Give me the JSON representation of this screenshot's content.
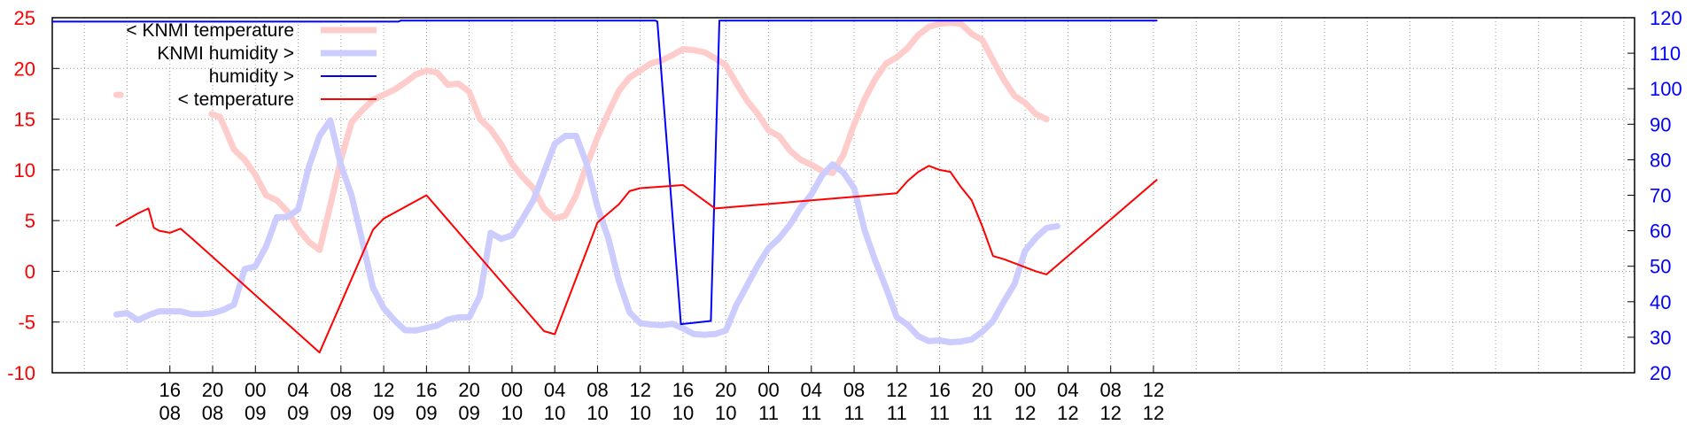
{
  "chart_data": {
    "type": "line",
    "title": "",
    "x_unit": "hour",
    "x_range": [
      -19,
      129
    ],
    "ylim_left": [
      -10,
      25
    ],
    "ylim_right": [
      20,
      120
    ],
    "grid": true,
    "legend_placement": "top-left",
    "yticks_left": [
      "25",
      "20",
      "15",
      "10",
      "5",
      "0",
      "-5",
      "-10"
    ],
    "yticks_right": [
      "120",
      "110",
      "100",
      "90",
      "80",
      "70",
      "60",
      "50",
      "40",
      "30",
      "20"
    ],
    "xticks": [
      {
        "x": -8,
        "hour": "16",
        "day": "08"
      },
      {
        "x": -4,
        "hour": "20",
        "day": "08"
      },
      {
        "x": 0,
        "hour": "00",
        "day": "09"
      },
      {
        "x": 4,
        "hour": "04",
        "day": "09"
      },
      {
        "x": 8,
        "hour": "08",
        "day": "09"
      },
      {
        "x": 12,
        "hour": "12",
        "day": "09"
      },
      {
        "x": 16,
        "hour": "16",
        "day": "09"
      },
      {
        "x": 20,
        "hour": "20",
        "day": "09"
      },
      {
        "x": 24,
        "hour": "00",
        "day": "10"
      },
      {
        "x": 28,
        "hour": "04",
        "day": "10"
      },
      {
        "x": 32,
        "hour": "08",
        "day": "10"
      },
      {
        "x": 36,
        "hour": "12",
        "day": "10"
      },
      {
        "x": 40,
        "hour": "16",
        "day": "10"
      },
      {
        "x": 44,
        "hour": "20",
        "day": "10"
      },
      {
        "x": 48,
        "hour": "00",
        "day": "11"
      },
      {
        "x": 52,
        "hour": "04",
        "day": "11"
      },
      {
        "x": 56,
        "hour": "08",
        "day": "11"
      },
      {
        "x": 60,
        "hour": "12",
        "day": "11"
      },
      {
        "x": 64,
        "hour": "16",
        "day": "11"
      },
      {
        "x": 68,
        "hour": "20",
        "day": "11"
      },
      {
        "x": 72,
        "hour": "00",
        "day": "12"
      },
      {
        "x": 76,
        "hour": "04",
        "day": "12"
      },
      {
        "x": 80,
        "hour": "08",
        "day": "12"
      },
      {
        "x": 84,
        "hour": "12",
        "day": "12"
      }
    ],
    "series": [
      {
        "name": "< KNMI temperature",
        "axis": "left",
        "color": "#ffcccc",
        "segments": [
          [
            [
              -13,
              17.4
            ],
            [
              -12.6,
              17.4
            ]
          ],
          [
            [
              -4.1,
              15.5
            ],
            [
              -3.3,
              15.2
            ],
            [
              -2,
              12
            ],
            [
              -1,
              11
            ],
            [
              0,
              9.5
            ],
            [
              1,
              7.5
            ],
            [
              2,
              7
            ],
            [
              3,
              5.9
            ],
            [
              4,
              4.2
            ],
            [
              5,
              2.9
            ],
            [
              6,
              2.1
            ],
            [
              7,
              6.5
            ],
            [
              8,
              11
            ],
            [
              9,
              14.7
            ],
            [
              10,
              15.9
            ],
            [
              11,
              16.9
            ],
            [
              12,
              17.4
            ],
            [
              13,
              17.9
            ],
            [
              14,
              18.6
            ],
            [
              15,
              19.4
            ],
            [
              16,
              19.8
            ],
            [
              17,
              19.6
            ],
            [
              18,
              18.4
            ],
            [
              19,
              18.5
            ],
            [
              20,
              17.7
            ],
            [
              21,
              15
            ],
            [
              22,
              14
            ],
            [
              23,
              12.5
            ],
            [
              24,
              10.6
            ],
            [
              25,
              9.3
            ],
            [
              26,
              8.2
            ],
            [
              27,
              6.2
            ],
            [
              28,
              5.2
            ],
            [
              29,
              5.5
            ],
            [
              30,
              7.5
            ],
            [
              31,
              10.5
            ],
            [
              32,
              13.2
            ],
            [
              33,
              15.6
            ],
            [
              34,
              17.8
            ],
            [
              35,
              19.1
            ],
            [
              36,
              19.8
            ],
            [
              37,
              20.5
            ],
            [
              38,
              20.8
            ],
            [
              39,
              21.3
            ],
            [
              40,
              21.9
            ],
            [
              41,
              21.8
            ],
            [
              42,
              21.6
            ],
            [
              43,
              21
            ],
            [
              44,
              20.3
            ],
            [
              45,
              18.5
            ],
            [
              46,
              16.8
            ],
            [
              47,
              15.5
            ],
            [
              48,
              13.9
            ],
            [
              49,
              13.3
            ],
            [
              50,
              11.9
            ],
            [
              51,
              11
            ],
            [
              52,
              10.5
            ],
            [
              53,
              9.9
            ],
            [
              54,
              9.7
            ],
            [
              55,
              11.5
            ],
            [
              56,
              14.5
            ],
            [
              57,
              17
            ],
            [
              58,
              19
            ],
            [
              59,
              20.5
            ],
            [
              60,
              21.1
            ],
            [
              61,
              22
            ],
            [
              62,
              23.3
            ],
            [
              63,
              24.1
            ],
            [
              64,
              24.4
            ],
            [
              65,
              24.5
            ],
            [
              66,
              24.4
            ],
            [
              67,
              23.4
            ],
            [
              68,
              22.8
            ],
            [
              69,
              20.8
            ],
            [
              70,
              18.9
            ],
            [
              71,
              17.3
            ],
            [
              72,
              16.6
            ],
            [
              73,
              15.5
            ],
            [
              74,
              15
            ]
          ]
        ]
      },
      {
        "name": "KNMI humidity >",
        "axis": "right",
        "color": "#ccccff",
        "segments": [
          [
            [
              -13,
              36.4
            ],
            [
              -12,
              36.8
            ],
            [
              -11,
              34.8
            ],
            [
              -10,
              36.2
            ],
            [
              -9,
              37.3
            ],
            [
              -8,
              37.3
            ],
            [
              -7,
              37.3
            ],
            [
              -6,
              36.5
            ],
            [
              -5,
              36.5
            ],
            [
              -4,
              36.8
            ],
            [
              -3,
              37.7
            ],
            [
              -2,
              39.2
            ],
            [
              -1,
              49.2
            ],
            [
              0,
              50
            ],
            [
              1,
              55.6
            ],
            [
              2,
              63.8
            ],
            [
              3,
              63.9
            ],
            [
              4,
              66
            ],
            [
              5,
              78
            ],
            [
              6,
              86.7
            ],
            [
              7,
              91.1
            ],
            [
              8,
              78.5
            ],
            [
              9,
              69.9
            ],
            [
              10,
              57
            ],
            [
              11,
              44
            ],
            [
              12,
              38.2
            ],
            [
              13,
              34.8
            ],
            [
              14,
              32
            ],
            [
              15,
              31.9
            ],
            [
              16,
              32.6
            ],
            [
              17,
              33.3
            ],
            [
              18,
              35
            ],
            [
              19,
              35.6
            ],
            [
              20,
              35.6
            ],
            [
              21,
              41.6
            ],
            [
              22,
              59.4
            ],
            [
              23,
              57.7
            ],
            [
              24,
              58.7
            ],
            [
              25,
              63.5
            ],
            [
              26,
              68.6
            ],
            [
              27,
              76.5
            ],
            [
              28,
              84.5
            ],
            [
              29,
              86.7
            ],
            [
              30,
              86.7
            ],
            [
              31,
              78.7
            ],
            [
              32,
              66.7
            ],
            [
              33,
              58
            ],
            [
              34,
              45.8
            ],
            [
              35,
              37
            ],
            [
              36,
              34
            ],
            [
              37,
              33.6
            ],
            [
              38,
              33.4
            ],
            [
              39,
              33.8
            ],
            [
              40,
              32.5
            ],
            [
              41,
              30.9
            ],
            [
              42,
              30.7
            ],
            [
              43,
              30.9
            ],
            [
              44,
              31.9
            ],
            [
              45,
              39.1
            ],
            [
              46,
              44.7
            ],
            [
              47,
              50.3
            ],
            [
              48,
              55.1
            ],
            [
              49,
              57.9
            ],
            [
              50,
              61.7
            ],
            [
              51,
              66.5
            ],
            [
              52,
              70.2
            ],
            [
              53,
              75.6
            ],
            [
              54,
              78.7
            ],
            [
              55,
              76.4
            ],
            [
              56,
              72
            ],
            [
              57,
              60
            ],
            [
              58,
              51.4
            ],
            [
              59,
              43.8
            ],
            [
              60,
              35.6
            ],
            [
              61,
              33.5
            ],
            [
              62,
              30.3
            ],
            [
              63,
              28.9
            ],
            [
              64,
              29.1
            ],
            [
              65,
              28.6
            ],
            [
              66,
              28.8
            ],
            [
              67,
              29.4
            ],
            [
              68,
              31.6
            ],
            [
              69,
              34.6
            ],
            [
              70,
              40
            ],
            [
              71,
              45
            ],
            [
              72,
              54.4
            ],
            [
              73,
              58
            ],
            [
              74,
              60.8
            ],
            [
              75,
              61.3
            ]
          ]
        ]
      },
      {
        "name": "humidity >",
        "axis": "right",
        "color": "#0000ff",
        "segments": [
          [
            [
              -19,
              118.9
            ],
            [
              13.4,
              118.9
            ],
            [
              13.6,
              119.2
            ],
            [
              37.4,
              119.2
            ],
            [
              37.6,
              118.9
            ],
            [
              39.8,
              33.7
            ],
            [
              42.6,
              34.6
            ],
            [
              43.4,
              119.2
            ],
            [
              84.3,
              119.2
            ]
          ]
        ]
      },
      {
        "name": "< temperature",
        "axis": "left",
        "color": "#ff0000",
        "segments": [
          [
            [
              -13,
              4.5
            ],
            [
              -12,
              5.1
            ],
            [
              -11,
              5.7
            ],
            [
              -10,
              6.2
            ],
            [
              -9.5,
              4.3
            ],
            [
              -9,
              4
            ],
            [
              -8,
              3.8
            ],
            [
              -7,
              4.2
            ],
            [
              -6,
              3.3
            ],
            [
              6,
              -8
            ],
            [
              11,
              4.1
            ],
            [
              12,
              5.2
            ],
            [
              16,
              7.5
            ],
            [
              27,
              -5.9
            ],
            [
              28,
              -6.2
            ],
            [
              32,
              4.8
            ],
            [
              34,
              6.6
            ],
            [
              35,
              7.9
            ],
            [
              36,
              8.2
            ],
            [
              40,
              8.5
            ],
            [
              43,
              6.2
            ],
            [
              60,
              7.7
            ],
            [
              61,
              8.9
            ],
            [
              62,
              9.8
            ],
            [
              63,
              10.4
            ],
            [
              64,
              10
            ],
            [
              65,
              9.8
            ],
            [
              66,
              8.3
            ],
            [
              67,
              7
            ],
            [
              68,
              4.4
            ],
            [
              69,
              1.5
            ],
            [
              70,
              1.2
            ],
            [
              73,
              0
            ],
            [
              74,
              -0.3
            ],
            [
              84.3,
              9
            ]
          ]
        ]
      }
    ]
  }
}
